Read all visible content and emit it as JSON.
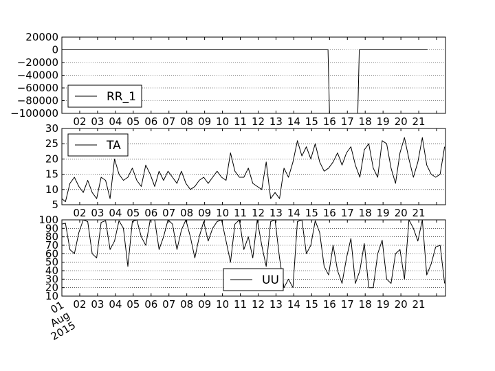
{
  "chart_data": [
    {
      "type": "line",
      "legend": "RR_1",
      "legend_position": "lower-left",
      "grid": "horizontal-dotted",
      "ylim": [
        -100000,
        20000
      ],
      "yticks": [
        20000,
        0,
        -20000,
        -40000,
        -60000,
        -80000,
        -100000
      ],
      "ytick_labels": [
        "20000",
        "0",
        "−20000",
        "−40000",
        "−60000",
        "−80000",
        "−100000"
      ],
      "x": [
        "2015-08-01",
        "2015-08-15",
        "2015-08-15 22:00",
        "2015-08-16",
        "2015-08-17 14:00",
        "2015-08-17 16:00",
        "2015-08-21 12:00"
      ],
      "values": [
        0,
        0,
        0,
        -100000,
        -100000,
        0,
        0
      ]
    },
    {
      "type": "line",
      "legend": "TA",
      "legend_position": "upper-left",
      "grid": "horizontal-dotted",
      "ylim": [
        5,
        30
      ],
      "yticks": [
        30,
        25,
        20,
        15,
        10,
        5
      ],
      "ytick_labels": [
        "30",
        "25",
        "20",
        "15",
        "10",
        "5"
      ],
      "x_day_offset": [
        0,
        0.2,
        0.45,
        0.7,
        0.95,
        1.2,
        1.45,
        1.7,
        1.95,
        2.2,
        2.45,
        2.7,
        2.95,
        3.2,
        3.45,
        3.7,
        3.95,
        4.2,
        4.45,
        4.7,
        4.95,
        5.2,
        5.45,
        5.7,
        5.95,
        6.2,
        6.45,
        6.7,
        6.95,
        7.2,
        7.45,
        7.7,
        7.95,
        8.2,
        8.45,
        8.7,
        8.95,
        9.2,
        9.45,
        9.7,
        9.95,
        10.2,
        10.45,
        10.7,
        10.95,
        11.2,
        11.45,
        11.7,
        11.95,
        12.2,
        12.45,
        12.7,
        12.95,
        13.2,
        13.45,
        13.7,
        13.95,
        14.2,
        14.45,
        14.7,
        14.95,
        15.2,
        15.45,
        15.7,
        15.95,
        16.2,
        16.45,
        16.7,
        16.95,
        17.2,
        17.45,
        17.7,
        17.95,
        18.2,
        18.45,
        18.7,
        18.95,
        19.2,
        19.45,
        19.7,
        19.95,
        20.2,
        20.45,
        20.7,
        20.95,
        21.2,
        21.45
      ],
      "values": [
        7,
        6,
        12,
        14,
        11,
        9,
        13,
        9,
        7,
        14,
        13,
        7,
        20,
        15,
        13,
        14,
        17,
        13,
        11,
        18,
        15,
        11,
        16,
        13,
        16,
        14,
        12,
        16,
        12,
        10,
        11,
        13,
        14,
        12,
        14,
        16,
        14,
        13,
        22,
        16,
        14,
        14,
        17,
        12,
        11,
        10,
        19,
        7,
        9,
        7,
        17,
        14,
        19,
        26,
        21,
        24,
        20,
        25,
        19,
        16,
        17,
        19,
        22,
        18,
        22,
        24,
        18,
        14,
        23,
        25,
        17,
        14,
        26,
        25,
        17,
        12,
        22,
        27,
        20,
        14,
        19,
        27,
        18,
        15,
        14,
        15,
        24
      ]
    },
    {
      "type": "line",
      "legend": "UU",
      "legend_position": "lower-center",
      "grid": "horizontal-dotted",
      "ylim": [
        10,
        100
      ],
      "yticks": [
        100,
        90,
        80,
        70,
        60,
        50,
        40,
        30,
        20,
        10
      ],
      "ytick_labels": [
        "100",
        "90",
        "80",
        "70",
        "60",
        "50",
        "40",
        "30",
        "20",
        "10"
      ],
      "xtick_labels": [
        "02",
        "03",
        "04",
        "05",
        "06",
        "07",
        "08",
        "09",
        "10",
        "11",
        "12",
        "13",
        "14",
        "15",
        "16",
        "17",
        "18",
        "19",
        "20",
        "21"
      ],
      "xaxis_start_label": "01\nAug\n2015",
      "x_day_offset": [
        0,
        0.2,
        0.45,
        0.7,
        0.95,
        1.2,
        1.45,
        1.7,
        1.95,
        2.2,
        2.45,
        2.7,
        2.95,
        3.2,
        3.45,
        3.7,
        3.95,
        4.2,
        4.45,
        4.7,
        4.95,
        5.2,
        5.45,
        5.7,
        5.95,
        6.2,
        6.45,
        6.7,
        6.95,
        7.2,
        7.45,
        7.7,
        7.95,
        8.2,
        8.45,
        8.7,
        8.95,
        9.2,
        9.45,
        9.7,
        9.95,
        10.2,
        10.45,
        10.7,
        10.95,
        11.2,
        11.45,
        11.7,
        11.95,
        12.2,
        12.45,
        12.7,
        12.95,
        13.2,
        13.45,
        13.7,
        13.95,
        14.2,
        14.45,
        14.7,
        14.95,
        15.2,
        15.45,
        15.7,
        15.95,
        16.2,
        16.45,
        16.7,
        16.95,
        17.2,
        17.45,
        17.7,
        17.95,
        18.2,
        18.45,
        18.7,
        18.95,
        19.2,
        19.45,
        19.7,
        19.95,
        20.2,
        20.45,
        20.7,
        20.95,
        21.2,
        21.45
      ],
      "values": [
        95,
        96,
        65,
        60,
        85,
        100,
        98,
        60,
        55,
        97,
        99,
        65,
        75,
        99,
        90,
        45,
        98,
        100,
        80,
        70,
        100,
        100,
        65,
        80,
        100,
        95,
        65,
        88,
        100,
        80,
        55,
        80,
        98,
        75,
        90,
        98,
        100,
        75,
        50,
        95,
        100,
        65,
        80,
        55,
        100,
        70,
        45,
        98,
        100,
        55,
        20,
        30,
        20,
        98,
        100,
        60,
        70,
        99,
        85,
        45,
        35,
        70,
        40,
        25,
        55,
        78,
        25,
        40,
        72,
        20,
        20,
        60,
        76,
        30,
        25,
        60,
        65,
        30,
        100,
        90,
        75,
        100,
        35,
        48,
        68,
        70,
        25
      ]
    }
  ]
}
